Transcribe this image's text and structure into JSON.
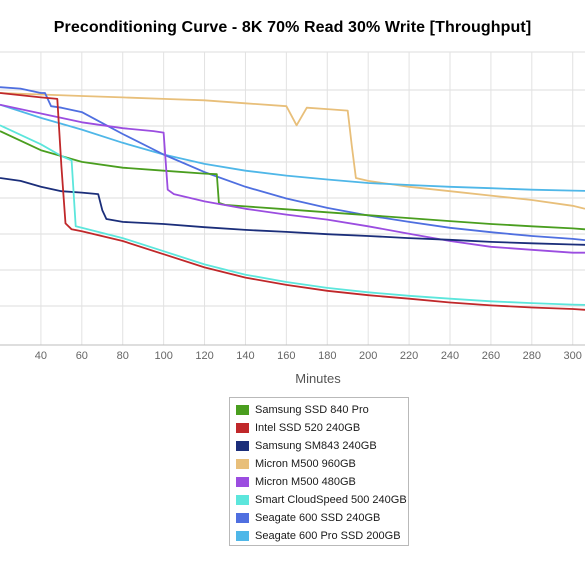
{
  "title": "Preconditioning Curve - 8K 70% Read 30% Write [Throughput]",
  "chart_data": {
    "type": "line",
    "title": "Preconditioning Curve - 8K 70% Read 30% Write [Throughput]",
    "xlabel": "Minutes",
    "ylabel": "",
    "x_ticks": [
      40,
      60,
      80,
      100,
      120,
      140,
      160,
      180,
      200,
      220,
      240,
      260,
      280,
      300
    ],
    "xlim": [
      20,
      306
    ],
    "ylim": [
      0,
      100
    ],
    "grid": true,
    "legend_position": "bottom-center",
    "series": [
      {
        "name": "Samsung SSD 840 Pro",
        "color": "#4a9e1f",
        "x": [
          20,
          40,
          60,
          80,
          100,
          120,
          126,
          127,
          130,
          140,
          160,
          180,
          200,
          220,
          240,
          260,
          280,
          300,
          306
        ],
        "y": [
          73,
          66.5,
          62.5,
          60.5,
          59.5,
          58.5,
          58.3,
          48.5,
          47.8,
          47.3,
          46.3,
          45.3,
          44.3,
          43.3,
          42.3,
          41.3,
          40.5,
          39.8,
          39.5
        ]
      },
      {
        "name": "Intel SSD 520 240GB",
        "color": "#c0282a",
        "x": [
          20,
          40,
          48,
          50,
          52,
          55,
          60,
          80,
          100,
          120,
          140,
          160,
          180,
          200,
          220,
          240,
          260,
          280,
          300,
          306
        ],
        "y": [
          86,
          84.5,
          84,
          61,
          41.5,
          39.5,
          38.8,
          35.5,
          31,
          26.5,
          23,
          20.5,
          18.5,
          17,
          15.8,
          14.5,
          13.5,
          12.8,
          12.3,
          12
        ]
      },
      {
        "name": "Samsung SM843 240GB",
        "color": "#1b2e7a",
        "x": [
          20,
          30,
          40,
          50,
          60,
          68,
          70,
          72,
          80,
          100,
          120,
          140,
          160,
          180,
          200,
          220,
          240,
          260,
          280,
          300,
          306
        ],
        "y": [
          57,
          56,
          54,
          52.5,
          52,
          51.5,
          46,
          43,
          42,
          41.3,
          40.2,
          39.3,
          38.6,
          37.8,
          37.2,
          36.5,
          35.9,
          35.2,
          34.7,
          34.3,
          34.2
        ]
      },
      {
        "name": "Micron M500 960GB",
        "color": "#e8bf7a",
        "x": [
          20,
          40,
          60,
          80,
          100,
          120,
          140,
          160,
          165,
          170,
          180,
          190,
          192,
          194,
          200,
          220,
          240,
          260,
          280,
          300,
          306
        ],
        "y": [
          86,
          85.5,
          85,
          84.5,
          84,
          83.5,
          82.5,
          81.5,
          75,
          81,
          80.5,
          80,
          68,
          57,
          56,
          54,
          52.5,
          51,
          49.5,
          47.5,
          46.5
        ]
      },
      {
        "name": "Micron M500 480GB",
        "color": "#9b4de0",
        "x": [
          20,
          40,
          60,
          80,
          95,
          100,
          102,
          105,
          120,
          140,
          160,
          180,
          200,
          220,
          240,
          260,
          280,
          300,
          306
        ],
        "y": [
          82,
          79,
          76,
          74,
          73,
          72.5,
          53,
          51.5,
          49,
          46.5,
          44.5,
          42.8,
          40.5,
          38,
          35.5,
          33.5,
          32.5,
          31.5,
          31.5
        ]
      },
      {
        "name": "Smart CloudSpeed 500 240GB",
        "color": "#5ce6dc",
        "x": [
          20,
          40,
          50,
          55,
          57,
          60,
          80,
          100,
          120,
          140,
          160,
          180,
          200,
          220,
          240,
          260,
          280,
          300,
          306
        ],
        "y": [
          75,
          68.5,
          64.5,
          63,
          40.5,
          40,
          36.5,
          32,
          27.5,
          24,
          21.5,
          19.5,
          18,
          16.8,
          15.8,
          14.9,
          14.3,
          13.8,
          13.7
        ]
      },
      {
        "name": "Seagate 600 SSD 240GB",
        "color": "#4f6fe0",
        "x": [
          20,
          30,
          40,
          42,
          45,
          50,
          60,
          80,
          100,
          120,
          140,
          160,
          180,
          200,
          220,
          240,
          260,
          280,
          300,
          306
        ],
        "y": [
          88,
          87.5,
          86,
          86,
          81.5,
          81,
          79.5,
          72,
          65,
          59,
          54,
          50,
          46.8,
          44.2,
          42,
          40,
          38.5,
          37.2,
          36.2,
          35.8
        ]
      },
      {
        "name": "Seagate 600 Pro SSD 200GB",
        "color": "#4fb7e8",
        "x": [
          20,
          40,
          60,
          80,
          100,
          120,
          140,
          160,
          180,
          200,
          220,
          240,
          260,
          280,
          300,
          306
        ],
        "y": [
          82,
          77.5,
          73.5,
          69,
          65,
          61.8,
          59.5,
          57.8,
          56.5,
          55.3,
          54.6,
          54,
          53.5,
          53,
          52.7,
          52.6
        ]
      }
    ]
  }
}
